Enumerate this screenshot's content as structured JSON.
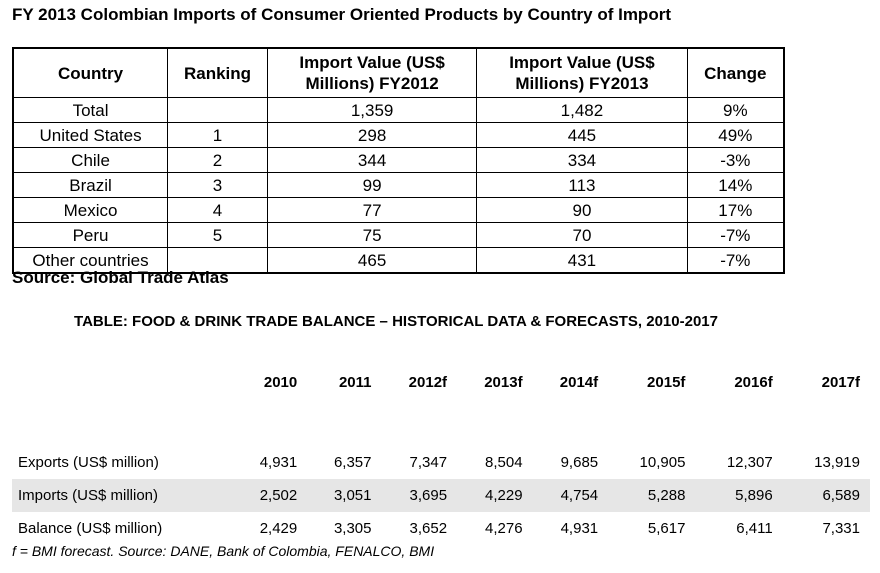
{
  "table1": {
    "title": "FY 2013 Colombian Imports of Consumer Oriented Products by Country of Import",
    "headers": {
      "country": "Country",
      "ranking": "Ranking",
      "fy2012": "Import Value (US$ Millions) FY2012",
      "fy2013": "Import Value (US$ Millions) FY2013",
      "change": "Change"
    },
    "rows": [
      {
        "country": "Total",
        "ranking": "",
        "fy2012": "1,359",
        "fy2013": "1,482",
        "change": "9%"
      },
      {
        "country": "United States",
        "ranking": "1",
        "fy2012": "298",
        "fy2013": "445",
        "change": "49%"
      },
      {
        "country": "Chile",
        "ranking": "2",
        "fy2012": "344",
        "fy2013": "334",
        "change": "-3%"
      },
      {
        "country": "Brazil",
        "ranking": "3",
        "fy2012": "99",
        "fy2013": "113",
        "change": "14%"
      },
      {
        "country": "Mexico",
        "ranking": "4",
        "fy2012": "77",
        "fy2013": "90",
        "change": "17%"
      },
      {
        "country": "Peru",
        "ranking": "5",
        "fy2012": "75",
        "fy2013": "70",
        "change": "-7%"
      },
      {
        "country": "Other countries",
        "ranking": "",
        "fy2012": "465",
        "fy2013": "431",
        "change": "-7%"
      }
    ],
    "source": "Source: Global Trade Atlas"
  },
  "table2": {
    "title": "TABLE: FOOD & DRINK TRADE BALANCE – HISTORICAL DATA & FORECASTS, 2010-2017",
    "years": [
      "2010",
      "2011",
      "2012f",
      "2013f",
      "2014f",
      "2015f",
      "2016f",
      "2017f"
    ],
    "rows": [
      {
        "label": "Exports (US$ million)",
        "values": [
          "4,931",
          "6,357",
          "7,347",
          "8,504",
          "9,685",
          "10,905",
          "12,307",
          "13,919"
        ]
      },
      {
        "label": "Imports (US$ million)",
        "values": [
          "2,502",
          "3,051",
          "3,695",
          "4,229",
          "4,754",
          "5,288",
          "5,896",
          "6,589"
        ]
      },
      {
        "label": "Balance (US$ million)",
        "values": [
          "2,429",
          "3,305",
          "3,652",
          "4,276",
          "4,931",
          "5,617",
          "6,411",
          "7,331"
        ]
      }
    ],
    "footnote": "f = BMI forecast. Source: DANE, Bank of Colombia, FENALCO, BMI"
  }
}
